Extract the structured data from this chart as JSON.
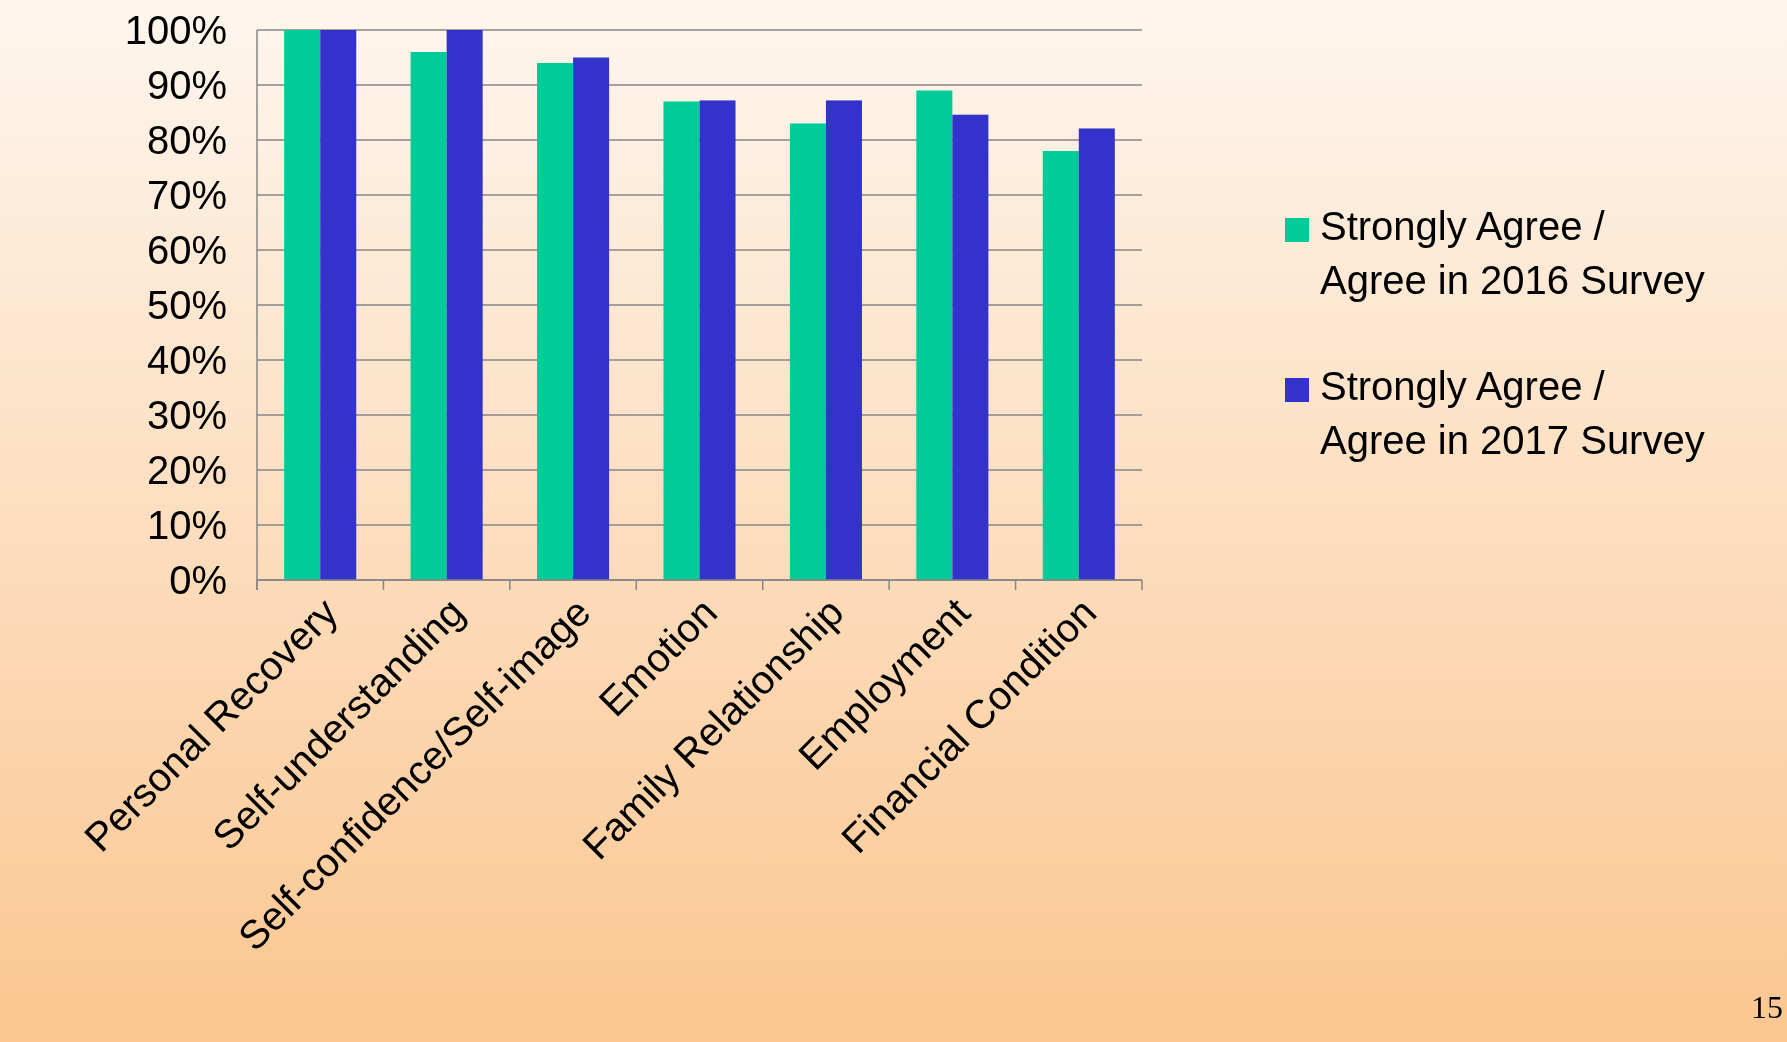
{
  "chart_data": {
    "type": "bar",
    "categories": [
      "Personal Recovery",
      "Self-understanding",
      "Self-confidence/Self-image",
      "Emotion",
      "Family Relationship",
      "Employment",
      "Financial Condition"
    ],
    "series": [
      {
        "name": "Strongly Agree / Agree in 2016 Survey",
        "color": "#00cc99",
        "values": [
          100,
          96,
          94,
          87,
          83,
          89,
          78
        ]
      },
      {
        "name": "Strongly Agree / Agree in 2017 Survey",
        "color": "#3333cc",
        "values": [
          100,
          100,
          95,
          87.2,
          87.2,
          84.6,
          82.1
        ]
      }
    ],
    "ylim": [
      0,
      100
    ],
    "yticks": [
      {
        "value": 0,
        "label": "0%"
      },
      {
        "value": 10,
        "label": "10%"
      },
      {
        "value": 20,
        "label": "20%"
      },
      {
        "value": 30,
        "label": "30%"
      },
      {
        "value": 40,
        "label": "40%"
      },
      {
        "value": 50,
        "label": "50%"
      },
      {
        "value": 60,
        "label": "60%"
      },
      {
        "value": 70,
        "label": "70%"
      },
      {
        "value": 80,
        "label": "80%"
      },
      {
        "value": 90,
        "label": "90%"
      },
      {
        "value": 100,
        "label": "100%"
      }
    ],
    "grid": "y",
    "legend": "right",
    "annotations": [
      "15"
    ]
  }
}
